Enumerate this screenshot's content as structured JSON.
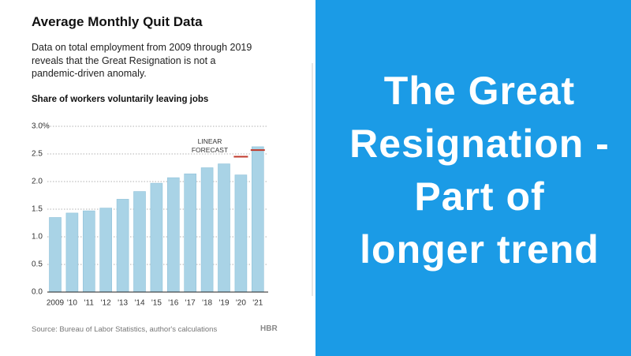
{
  "chart_data": {
    "type": "bar",
    "title": "Average Monthly Quit Data",
    "subtitle": "Data on total employment from 2009 through 2019 reveals that the Great Resignation is not a pandemic-driven anomaly.",
    "y_label": "Share of workers voluntarily leaving jobs",
    "categories": [
      "2009",
      "'10",
      "'11",
      "'12",
      "'13",
      "'14",
      "'15",
      "'16",
      "'17",
      "'18",
      "'19",
      "'20",
      "'21"
    ],
    "values": [
      1.35,
      1.43,
      1.47,
      1.52,
      1.68,
      1.82,
      1.97,
      2.07,
      2.14,
      2.25,
      2.32,
      2.12,
      2.63
    ],
    "color": "#a9d3e6",
    "forecast": {
      "name": "LINEAR FORECAST",
      "color": "#c0392b",
      "values": [
        null,
        null,
        null,
        null,
        null,
        null,
        null,
        null,
        null,
        null,
        null,
        2.45,
        2.57
      ]
    },
    "ylim": [
      0,
      3
    ],
    "yticks": [
      {
        "value": 0,
        "label": "0.0"
      },
      {
        "value": 0.5,
        "label": "0.5"
      },
      {
        "value": 1,
        "label": "1.0"
      },
      {
        "value": 1.5,
        "label": "1.5"
      },
      {
        "value": 2,
        "label": "2.0"
      },
      {
        "value": 2.5,
        "label": "2.5"
      },
      {
        "value": 3,
        "label": "3.0%"
      }
    ],
    "grid": true,
    "source": "Source: Bureau of Labor Statistics, author's calculations",
    "logo": "HBR"
  },
  "slide": {
    "title_lines": [
      "The Great",
      "Resignation -",
      "Part of",
      "longer trend"
    ],
    "background": "#1b9be6"
  }
}
